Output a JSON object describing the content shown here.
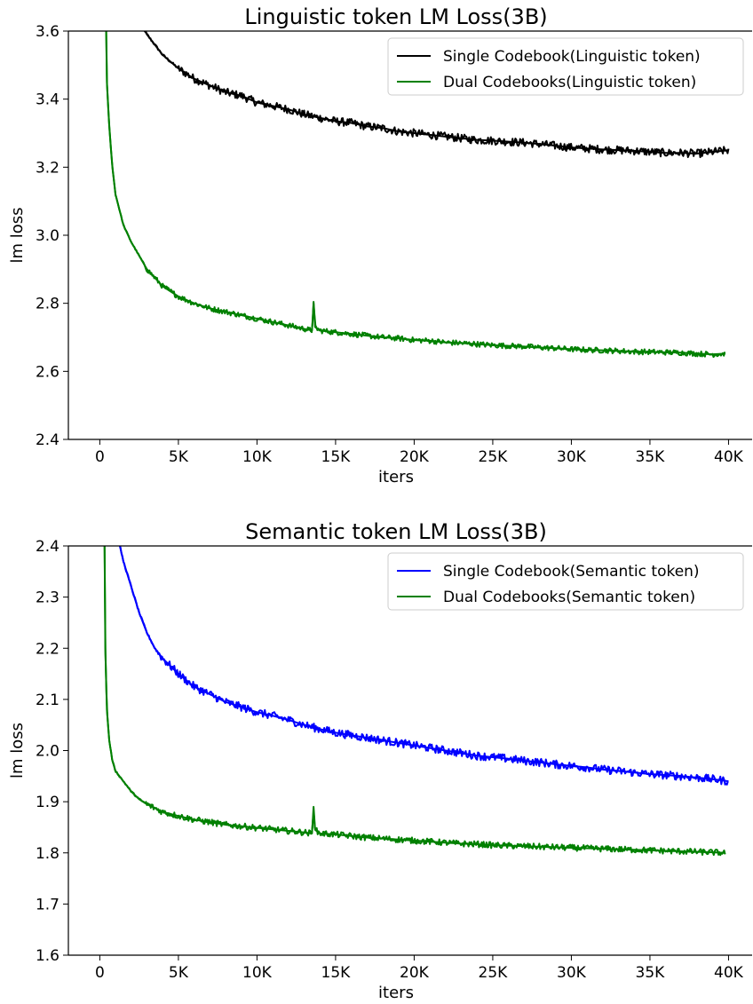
{
  "chart_data": [
    {
      "type": "line",
      "title": "Linguistic token LM Loss(3B)",
      "xlabel": "iters",
      "ylabel": "lm loss",
      "xlim": [
        -2000,
        41500
      ],
      "ylim": [
        2.4,
        3.6
      ],
      "xticks": [
        0,
        5000,
        10000,
        15000,
        20000,
        25000,
        30000,
        35000,
        40000
      ],
      "xtick_labels": [
        "0",
        "5K",
        "10K",
        "15K",
        "20K",
        "25K",
        "30K",
        "35K",
        "40K"
      ],
      "yticks": [
        2.4,
        2.6,
        2.8,
        3.0,
        3.2,
        3.4,
        3.6
      ],
      "ytick_labels": [
        "2.4",
        "2.6",
        "2.8",
        "3.0",
        "3.2",
        "3.4",
        "3.6"
      ],
      "legend_position": "top-right",
      "grid": false,
      "series": [
        {
          "name": "Single Codebook(Linguistic token)",
          "color": "#000000",
          "points": [
            [
              2500,
              3.63
            ],
            [
              3000,
              3.59
            ],
            [
              4000,
              3.53
            ],
            [
              5000,
              3.49
            ],
            [
              6000,
              3.46
            ],
            [
              7000,
              3.44
            ],
            [
              8000,
              3.42
            ],
            [
              9000,
              3.41
            ],
            [
              10000,
              3.39
            ],
            [
              11000,
              3.38
            ],
            [
              12000,
              3.37
            ],
            [
              13000,
              3.355
            ],
            [
              14000,
              3.345
            ],
            [
              15000,
              3.335
            ],
            [
              16000,
              3.33
            ],
            [
              17000,
              3.32
            ],
            [
              18000,
              3.315
            ],
            [
              19000,
              3.305
            ],
            [
              20000,
              3.3
            ],
            [
              21000,
              3.295
            ],
            [
              22000,
              3.29
            ],
            [
              23000,
              3.285
            ],
            [
              24000,
              3.28
            ],
            [
              25000,
              3.278
            ],
            [
              26000,
              3.275
            ],
            [
              27000,
              3.272
            ],
            [
              28000,
              3.268
            ],
            [
              29000,
              3.263
            ],
            [
              30000,
              3.258
            ],
            [
              31000,
              3.255
            ],
            [
              32000,
              3.252
            ],
            [
              33000,
              3.25
            ],
            [
              34000,
              3.248
            ],
            [
              35000,
              3.245
            ],
            [
              36000,
              3.242
            ],
            [
              37000,
              3.242
            ],
            [
              38000,
              3.24
            ],
            [
              39000,
              3.245
            ],
            [
              40000,
              3.25
            ]
          ],
          "noise": 0.012
        },
        {
          "name": "Dual Codebooks(Linguistic token)",
          "color": "#008000",
          "points": [
            [
              400,
              3.62
            ],
            [
              450,
              3.45
            ],
            [
              600,
              3.32
            ],
            [
              800,
              3.2
            ],
            [
              1000,
              3.12
            ],
            [
              1500,
              3.03
            ],
            [
              2000,
              2.98
            ],
            [
              2500,
              2.94
            ],
            [
              3000,
              2.9
            ],
            [
              4000,
              2.85
            ],
            [
              5000,
              2.82
            ],
            [
              6000,
              2.8
            ],
            [
              7000,
              2.785
            ],
            [
              8000,
              2.775
            ],
            [
              9000,
              2.765
            ],
            [
              10000,
              2.755
            ],
            [
              11000,
              2.745
            ],
            [
              12000,
              2.735
            ],
            [
              13000,
              2.725
            ],
            [
              13500,
              2.72
            ],
            [
              13600,
              2.8
            ],
            [
              13700,
              2.73
            ],
            [
              14000,
              2.72
            ],
            [
              15000,
              2.715
            ],
            [
              16000,
              2.71
            ],
            [
              17000,
              2.705
            ],
            [
              18000,
              2.7
            ],
            [
              19000,
              2.697
            ],
            [
              20000,
              2.692
            ],
            [
              21000,
              2.69
            ],
            [
              22000,
              2.685
            ],
            [
              23000,
              2.683
            ],
            [
              24000,
              2.68
            ],
            [
              25000,
              2.677
            ],
            [
              26000,
              2.675
            ],
            [
              27000,
              2.673
            ],
            [
              28000,
              2.67
            ],
            [
              29000,
              2.668
            ],
            [
              30000,
              2.665
            ],
            [
              31000,
              2.663
            ],
            [
              32000,
              2.662
            ],
            [
              33000,
              2.66
            ],
            [
              34000,
              2.658
            ],
            [
              35000,
              2.657
            ],
            [
              36000,
              2.656
            ],
            [
              37000,
              2.655
            ],
            [
              38000,
              2.652
            ],
            [
              39000,
              2.65
            ],
            [
              39800,
              2.652
            ]
          ],
          "noise": 0.008
        }
      ]
    },
    {
      "type": "line",
      "title": "Semantic token LM Loss(3B)",
      "xlabel": "iters",
      "ylabel": "lm loss",
      "xlim": [
        -2000,
        41500
      ],
      "ylim": [
        1.6,
        2.4
      ],
      "xticks": [
        0,
        5000,
        10000,
        15000,
        20000,
        25000,
        30000,
        35000,
        40000
      ],
      "xtick_labels": [
        "0",
        "5K",
        "10K",
        "15K",
        "20K",
        "25K",
        "30K",
        "35K",
        "40K"
      ],
      "yticks": [
        1.6,
        1.7,
        1.8,
        1.9,
        2.0,
        2.1,
        2.2,
        2.3,
        2.4
      ],
      "ytick_labels": [
        "1.6",
        "1.7",
        "1.8",
        "1.9",
        "2.0",
        "2.1",
        "2.2",
        "2.3",
        "2.4"
      ],
      "legend_position": "top-right",
      "grid": false,
      "series": [
        {
          "name": "Single Codebook(Semantic token)",
          "color": "#0000ff",
          "points": [
            [
              1200,
              2.41
            ],
            [
              1500,
              2.37
            ],
            [
              2000,
              2.32
            ],
            [
              2500,
              2.27
            ],
            [
              3000,
              2.23
            ],
            [
              3500,
              2.2
            ],
            [
              4000,
              2.18
            ],
            [
              5000,
              2.15
            ],
            [
              6000,
              2.125
            ],
            [
              7000,
              2.11
            ],
            [
              8000,
              2.095
            ],
            [
              9000,
              2.085
            ],
            [
              10000,
              2.075
            ],
            [
              11000,
              2.068
            ],
            [
              12000,
              2.06
            ],
            [
              13000,
              2.05
            ],
            [
              14000,
              2.042
            ],
            [
              15000,
              2.035
            ],
            [
              16000,
              2.03
            ],
            [
              17000,
              2.025
            ],
            [
              18000,
              2.02
            ],
            [
              19000,
              2.015
            ],
            [
              20000,
              2.01
            ],
            [
              21000,
              2.005
            ],
            [
              22000,
              2.0
            ],
            [
              23000,
              1.995
            ],
            [
              24000,
              1.99
            ],
            [
              25000,
              1.987
            ],
            [
              26000,
              1.984
            ],
            [
              27000,
              1.98
            ],
            [
              28000,
              1.977
            ],
            [
              29000,
              1.973
            ],
            [
              30000,
              1.97
            ],
            [
              31000,
              1.967
            ],
            [
              32000,
              1.963
            ],
            [
              33000,
              1.96
            ],
            [
              34000,
              1.957
            ],
            [
              35000,
              1.954
            ],
            [
              36000,
              1.952
            ],
            [
              37000,
              1.95
            ],
            [
              38000,
              1.947
            ],
            [
              39000,
              1.944
            ],
            [
              40000,
              1.94
            ]
          ],
          "noise": 0.008
        },
        {
          "name": "Dual Codebooks(Semantic token)",
          "color": "#008000",
          "points": [
            [
              300,
              2.41
            ],
            [
              350,
              2.2
            ],
            [
              450,
              2.08
            ],
            [
              600,
              2.02
            ],
            [
              800,
              1.98
            ],
            [
              1000,
              1.96
            ],
            [
              1500,
              1.94
            ],
            [
              2000,
              1.92
            ],
            [
              2500,
              1.905
            ],
            [
              3000,
              1.895
            ],
            [
              4000,
              1.88
            ],
            [
              5000,
              1.872
            ],
            [
              6000,
              1.865
            ],
            [
              7000,
              1.86
            ],
            [
              8000,
              1.855
            ],
            [
              9000,
              1.852
            ],
            [
              10000,
              1.849
            ],
            [
              11000,
              1.846
            ],
            [
              12000,
              1.843
            ],
            [
              13000,
              1.84
            ],
            [
              13500,
              1.838
            ],
            [
              13600,
              1.89
            ],
            [
              13700,
              1.845
            ],
            [
              14000,
              1.838
            ],
            [
              15000,
              1.836
            ],
            [
              16000,
              1.833
            ],
            [
              17000,
              1.83
            ],
            [
              18000,
              1.828
            ],
            [
              19000,
              1.826
            ],
            [
              20000,
              1.824
            ],
            [
              21000,
              1.822
            ],
            [
              22000,
              1.82
            ],
            [
              23000,
              1.818
            ],
            [
              24000,
              1.817
            ],
            [
              25000,
              1.815
            ],
            [
              26000,
              1.814
            ],
            [
              27000,
              1.813
            ],
            [
              28000,
              1.812
            ],
            [
              29000,
              1.811
            ],
            [
              30000,
              1.81
            ],
            [
              31000,
              1.809
            ],
            [
              32000,
              1.808
            ],
            [
              33000,
              1.807
            ],
            [
              34000,
              1.806
            ],
            [
              35000,
              1.805
            ],
            [
              36000,
              1.804
            ],
            [
              37000,
              1.803
            ],
            [
              38000,
              1.802
            ],
            [
              39000,
              1.801
            ],
            [
              39800,
              1.8
            ]
          ],
          "noise": 0.006
        }
      ]
    }
  ]
}
